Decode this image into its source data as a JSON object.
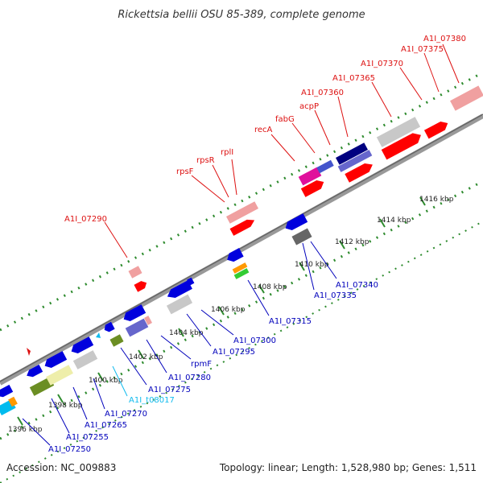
{
  "title": "Rickettsia bellii OSU 85-389, complete genome",
  "footer": {
    "accession": "Accession: NC_009883",
    "summary": "Topology: linear; Length: 1,528,980 bp; Genes: 1,511"
  },
  "colors": {
    "forward_label": "#dd1111",
    "reverse_label": "#0000bb",
    "trna_label": "#11bbee",
    "backbone": "#888888",
    "dots": "#2e8b2e"
  },
  "scale_ticks": [
    "1396 kbp",
    "1398 kbp",
    "1400 kbp",
    "1402 kbp",
    "1404 kbp",
    "1406 kbp",
    "1408 kbp",
    "1410 kbp",
    "1412 kbp",
    "1414 kbp",
    "1416 kbp"
  ],
  "forward_labels": [
    "A1I_07290",
    "rpsF",
    "rpsR",
    "rplI",
    "recA",
    "fabG",
    "acpP",
    "A1I_07360",
    "A1I_07365",
    "A1I_07370",
    "A1I_07375",
    "A1I_07380"
  ],
  "reverse_labels": [
    "A1I_07250",
    "A1I_07255",
    "A1I_07265",
    "A1I_07270",
    "A1I_t08017",
    "A1I_07275",
    "A1I_07280",
    "rpmF",
    "A1I_07295",
    "A1I_07300",
    "A1I_07315",
    "A1I_07335",
    "A1I_07340"
  ]
}
